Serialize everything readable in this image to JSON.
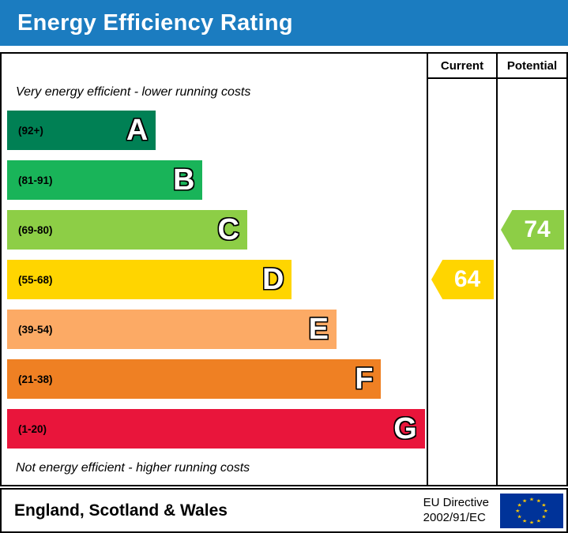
{
  "header": {
    "title": "Energy Efficiency Rating",
    "bg_color": "#1b7cc0"
  },
  "columns": {
    "current": "Current",
    "potential": "Potential"
  },
  "captions": {
    "top": "Very energy efficient - lower running costs",
    "bottom": "Not energy efficient - higher running costs"
  },
  "footer": {
    "region": "England, Scotland & Wales",
    "directive_line1": "EU Directive",
    "directive_line2": "2002/91/EC",
    "flag": "eu-flag-icon"
  },
  "chart_data": {
    "type": "bar",
    "title": "Energy Efficiency Rating",
    "orientation": "horizontal",
    "bands": [
      {
        "letter": "A",
        "range_label": "(92+)",
        "range": [
          92,
          100
        ],
        "color": "#008054",
        "width_pct": 35
      },
      {
        "letter": "B",
        "range_label": "(81-91)",
        "range": [
          81,
          91
        ],
        "color": "#19b459",
        "width_pct": 46
      },
      {
        "letter": "C",
        "range_label": "(69-80)",
        "range": [
          69,
          80
        ],
        "color": "#8dce46",
        "width_pct": 56.5
      },
      {
        "letter": "D",
        "range_label": "(55-68)",
        "range": [
          55,
          68
        ],
        "color": "#ffd500",
        "width_pct": 67
      },
      {
        "letter": "E",
        "range_label": "(39-54)",
        "range": [
          39,
          54
        ],
        "color": "#fcaa65",
        "width_pct": 77.5
      },
      {
        "letter": "F",
        "range_label": "(21-38)",
        "range": [
          21,
          38
        ],
        "color": "#ef8023",
        "width_pct": 88
      },
      {
        "letter": "G",
        "range_label": "(1-20)",
        "range": [
          1,
          20
        ],
        "color": "#e9153b",
        "width_pct": 98.3
      }
    ],
    "current": {
      "value": 64,
      "band": "D",
      "color": "#ffd500"
    },
    "potential": {
      "value": 74,
      "band": "C",
      "color": "#8dce46"
    }
  }
}
